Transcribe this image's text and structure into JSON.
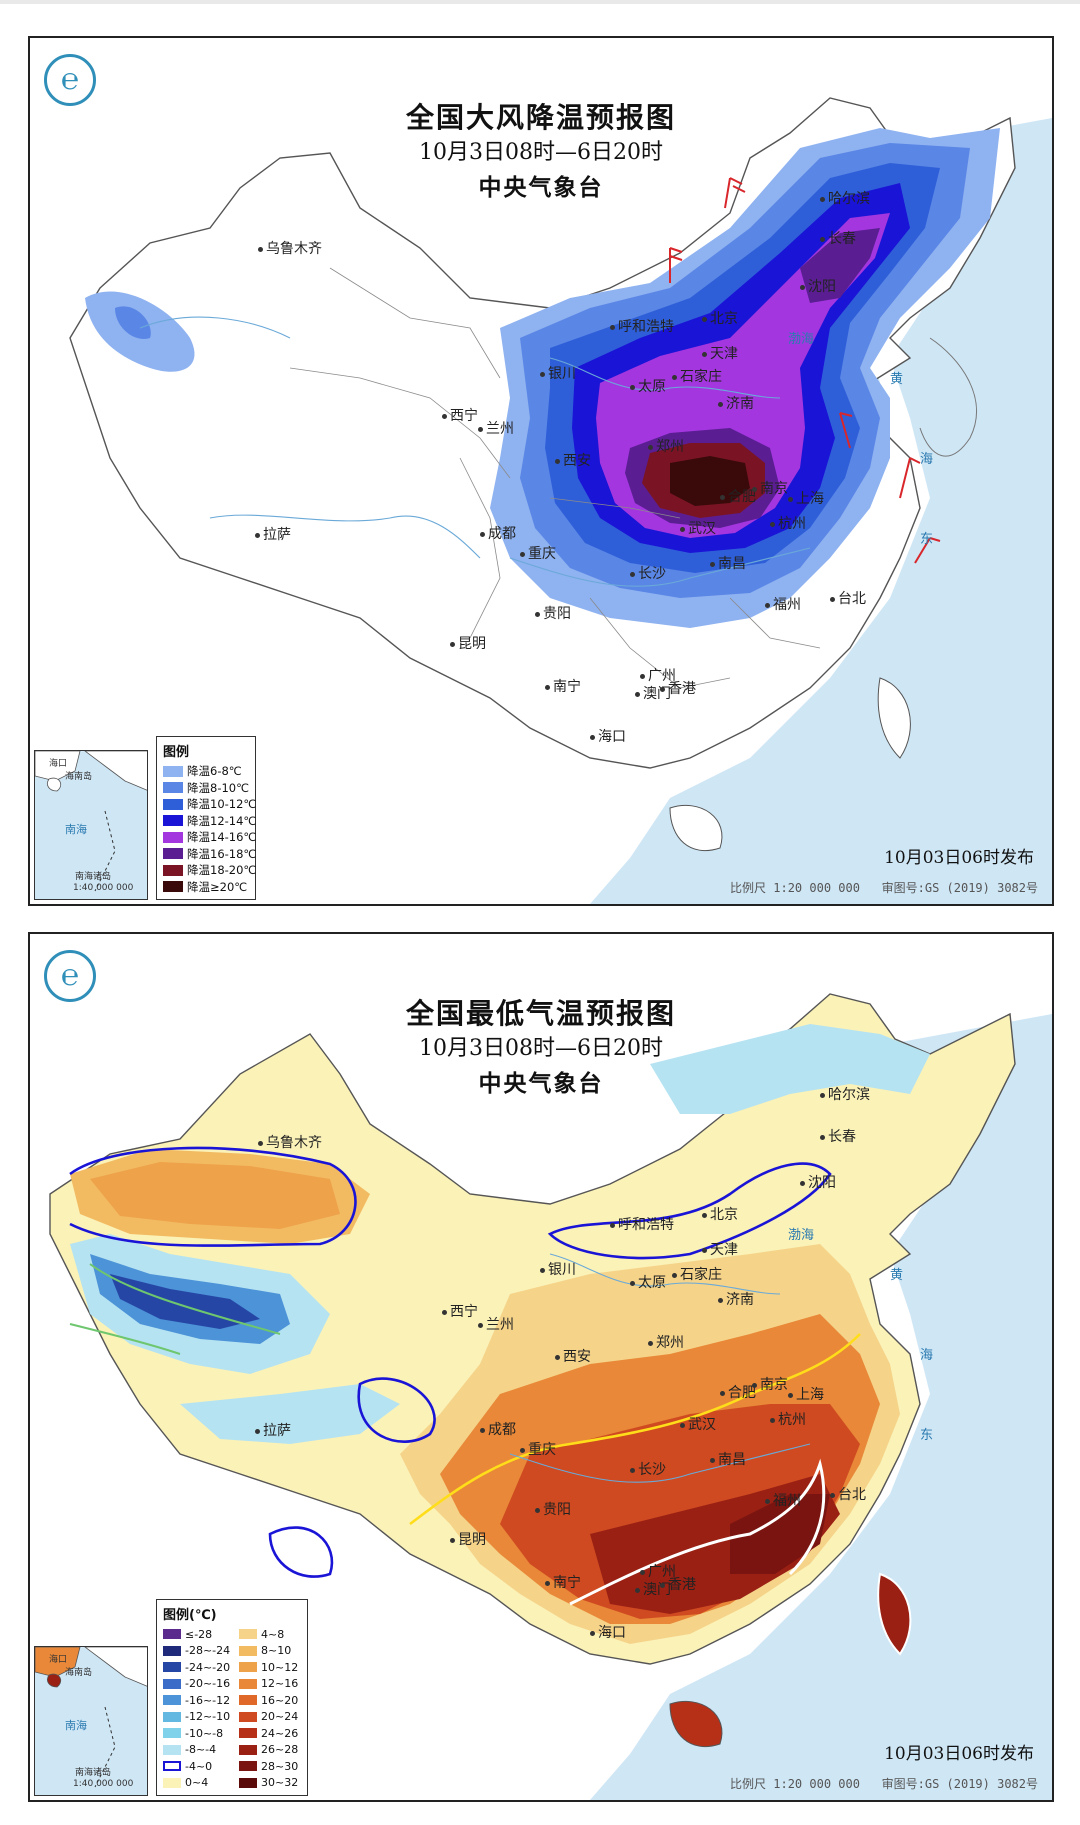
{
  "maps": [
    {
      "title": "全国大风降温预报图",
      "period": "10月3日08时—6日20时",
      "agency": "中央气象台",
      "issue": "10月03日06时发布",
      "scale": "比例尺 1:20 000 000",
      "approval": "审图号:GS (2019) 3082号",
      "legend_title": "图例",
      "legend": [
        {
          "label": "降温6-8℃",
          "color": "#8fb2f0"
        },
        {
          "label": "降温8-10℃",
          "color": "#5a86e6"
        },
        {
          "label": "降温10-12℃",
          "color": "#2f5fd8"
        },
        {
          "label": "降温12-14℃",
          "color": "#1a14d6"
        },
        {
          "label": "降温14-16℃",
          "color": "#a436e0"
        },
        {
          "label": "降温16-18℃",
          "color": "#5a1e92"
        },
        {
          "label": "降温18-20℃",
          "color": "#7a1424"
        },
        {
          "label": "降温≥20℃",
          "color": "#3a0a0a"
        }
      ],
      "cities": [
        "乌鲁木齐",
        "哈尔滨",
        "长春",
        "沈阳",
        "呼和浩特",
        "北京",
        "天津",
        "银川",
        "太原",
        "石家庄",
        "济南",
        "西宁",
        "兰州",
        "西安",
        "郑州",
        "合肥",
        "南京",
        "上海",
        "成都",
        "武汉",
        "杭州",
        "重庆",
        "长沙",
        "南昌",
        "福州",
        "贵阳",
        "台北",
        "昆明",
        "广州",
        "南宁",
        "澳门",
        "香港",
        "海口",
        "拉萨"
      ],
      "seas": [
        "渤海",
        "黄",
        "东",
        "海"
      ]
    },
    {
      "title": "全国最低气温预报图",
      "period": "10月3日08时—6日20时",
      "agency": "中央气象台",
      "issue": "10月03日06时发布",
      "scale": "比例尺 1:20 000 000",
      "approval": "审图号:GS (2019) 3082号",
      "legend_title": "图例(℃)",
      "legend": [
        {
          "label": "≤-28",
          "color": "#5a2a8c"
        },
        {
          "label": "-28~-24",
          "color": "#1f2a7a"
        },
        {
          "label": "-24~-20",
          "color": "#2646a6"
        },
        {
          "label": "-20~-16",
          "color": "#3a6cc8"
        },
        {
          "label": "-16~-12",
          "color": "#4d93d8"
        },
        {
          "label": "-12~-10",
          "color": "#62b8e0"
        },
        {
          "label": "-10~-8",
          "color": "#7fd2ea"
        },
        {
          "label": "-8~-4",
          "color": "#b5e3f2"
        },
        {
          "label": "-4~0",
          "color": "#ffffff"
        },
        {
          "label": "0~4",
          "color": "#fbf2b8"
        },
        {
          "label": "4~8",
          "color": "#f5d48a"
        },
        {
          "label": "8~10",
          "color": "#f2bb62"
        },
        {
          "label": "10~12",
          "color": "#eea24a"
        },
        {
          "label": "12~16",
          "color": "#e88838"
        },
        {
          "label": "16~20",
          "color": "#e0692a"
        },
        {
          "label": "20~24",
          "color": "#cf4a20"
        },
        {
          "label": "24~26",
          "color": "#b63018"
        },
        {
          "label": "26~28",
          "color": "#9a2014"
        },
        {
          "label": "28~30",
          "color": "#7a1410"
        },
        {
          "label": "30~32",
          "color": "#5a0a08"
        }
      ],
      "cities": [
        "乌鲁木齐",
        "哈尔滨",
        "长春",
        "沈阳",
        "呼和浩特",
        "北京",
        "天津",
        "银川",
        "太原",
        "石家庄",
        "济南",
        "西宁",
        "兰州",
        "西安",
        "郑州",
        "合肥",
        "南京",
        "上海",
        "成都",
        "武汉",
        "杭州",
        "重庆",
        "长沙",
        "南昌",
        "福州",
        "贵阳",
        "台北",
        "昆明",
        "广州",
        "南宁",
        "澳门",
        "香港",
        "海口",
        "拉萨"
      ],
      "seas": [
        "渤海",
        "黄",
        "东",
        "海"
      ]
    }
  ],
  "inset": {
    "labels": [
      "海口",
      "海南岛",
      "南海",
      "南海诸岛"
    ],
    "scale": "1:40 000 000"
  }
}
